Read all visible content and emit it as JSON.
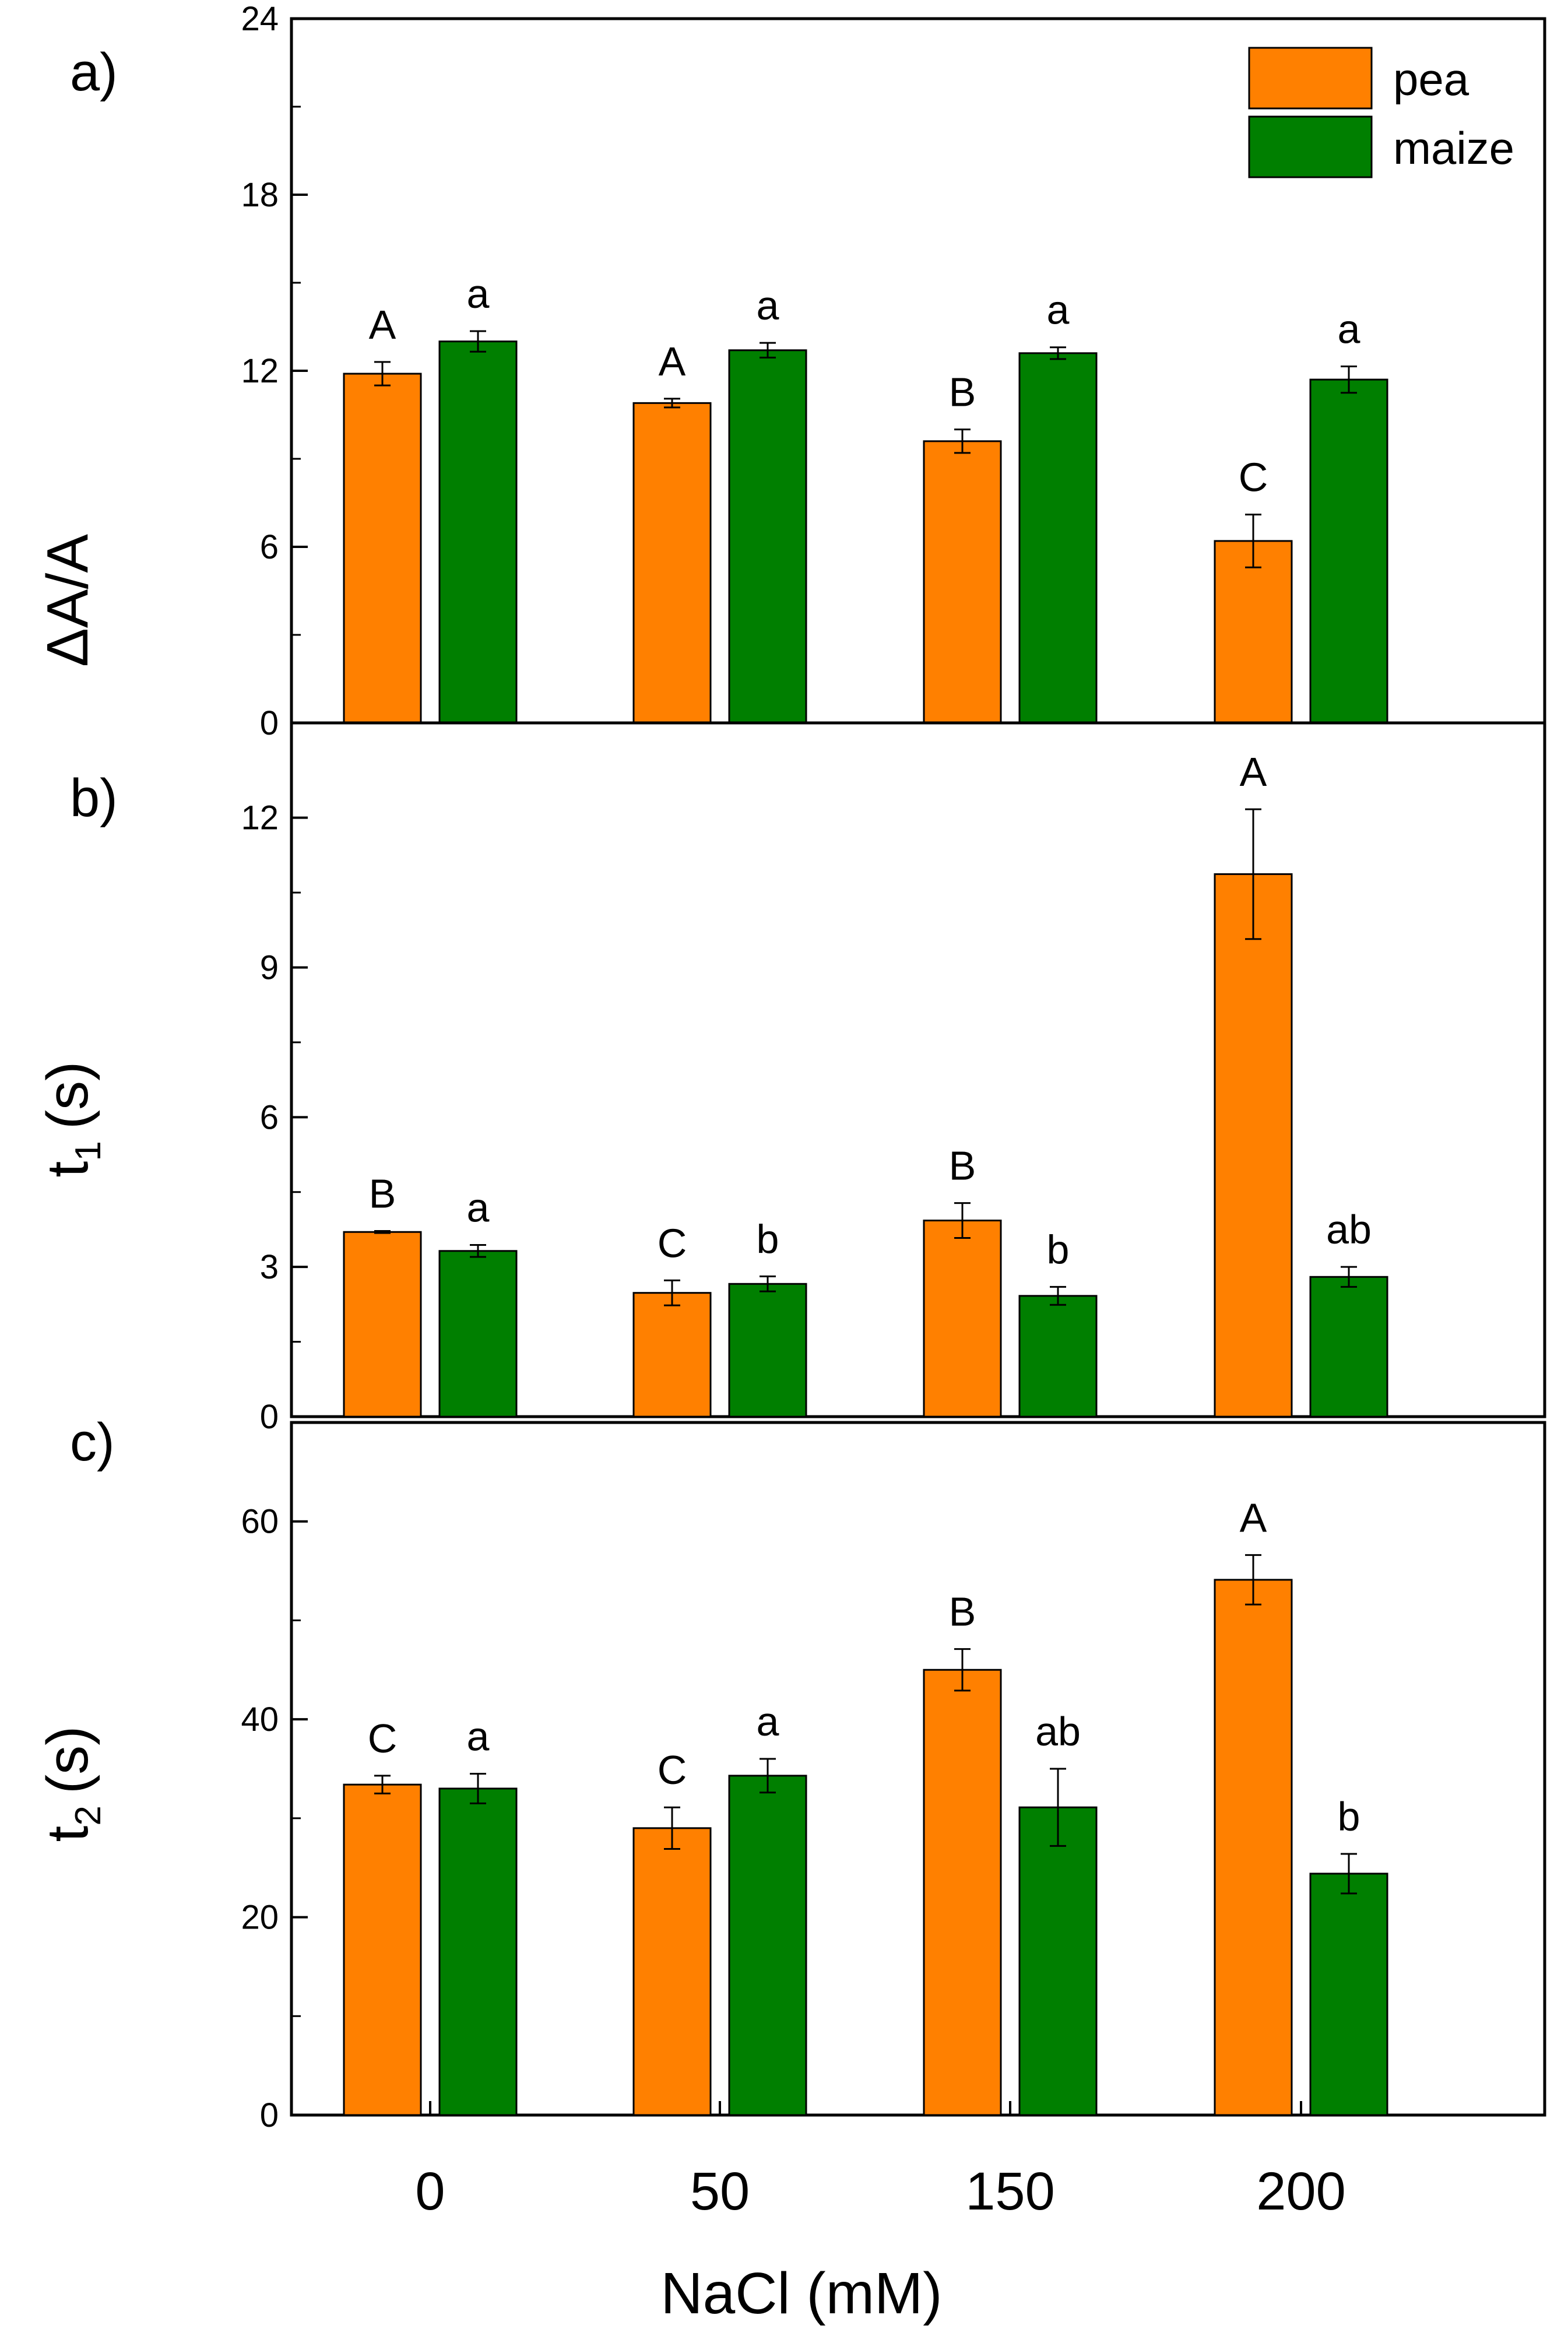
{
  "colors": {
    "pea": "#ff8000",
    "maize": "#007f00",
    "axis": "#000000"
  },
  "legend": [
    {
      "key": "pea",
      "label": "pea"
    },
    {
      "key": "maize",
      "label": "maize"
    }
  ],
  "xlabel": "NaCl (mM)",
  "chart_data": [
    {
      "type": "bar",
      "panel": "a)",
      "ylabel": "ΔA/A",
      "categories": [
        "0",
        "50",
        "150",
        "200"
      ],
      "ylim": [
        0,
        24
      ],
      "yticks": [
        0,
        6,
        12,
        18,
        24
      ],
      "series": [
        {
          "name": "pea",
          "values": [
            11.9,
            10.9,
            9.6,
            6.2
          ],
          "errors": [
            0.4,
            0.15,
            0.4,
            0.9
          ],
          "letters": [
            "A",
            "A",
            "B",
            "C"
          ]
        },
        {
          "name": "maize",
          "values": [
            13.0,
            12.7,
            12.6,
            11.7
          ],
          "errors": [
            0.35,
            0.25,
            0.2,
            0.45
          ],
          "letters": [
            "a",
            "a",
            "a",
            "a"
          ]
        }
      ]
    },
    {
      "type": "bar",
      "panel": "b)",
      "ylabel": "t",
      "ylabel_sub": "1",
      "ylabel_unit": "(s)",
      "categories": [
        "0",
        "50",
        "150",
        "200"
      ],
      "ylim": [
        0,
        13.9
      ],
      "yticks": [
        0,
        3,
        6,
        9,
        12
      ],
      "series": [
        {
          "name": "pea",
          "values": [
            3.7,
            2.48,
            3.93,
            10.87
          ],
          "errors": [
            0.02,
            0.25,
            0.35,
            1.3
          ],
          "letters": [
            "B",
            "C",
            "B",
            "A"
          ]
        },
        {
          "name": "maize",
          "values": [
            3.32,
            2.66,
            2.42,
            2.8
          ],
          "errors": [
            0.12,
            0.15,
            0.18,
            0.2
          ],
          "letters": [
            "a",
            "b",
            "b",
            "ab"
          ]
        }
      ]
    },
    {
      "type": "bar",
      "panel": "c)",
      "ylabel": "t",
      "ylabel_sub": "2",
      "ylabel_unit": "(s)",
      "categories": [
        "0",
        "50",
        "150",
        "200"
      ],
      "ylim": [
        0,
        70
      ],
      "yticks": [
        0,
        20,
        40,
        60
      ],
      "series": [
        {
          "name": "pea",
          "values": [
            33.4,
            29.0,
            45.0,
            54.1
          ],
          "errors": [
            0.9,
            2.1,
            2.1,
            2.5
          ],
          "letters": [
            "C",
            "C",
            "B",
            "A"
          ]
        },
        {
          "name": "maize",
          "values": [
            33.0,
            34.3,
            31.1,
            24.4
          ],
          "errors": [
            1.5,
            1.7,
            3.9,
            2.0
          ],
          "letters": [
            "a",
            "a",
            "ab",
            "b"
          ]
        }
      ]
    }
  ]
}
